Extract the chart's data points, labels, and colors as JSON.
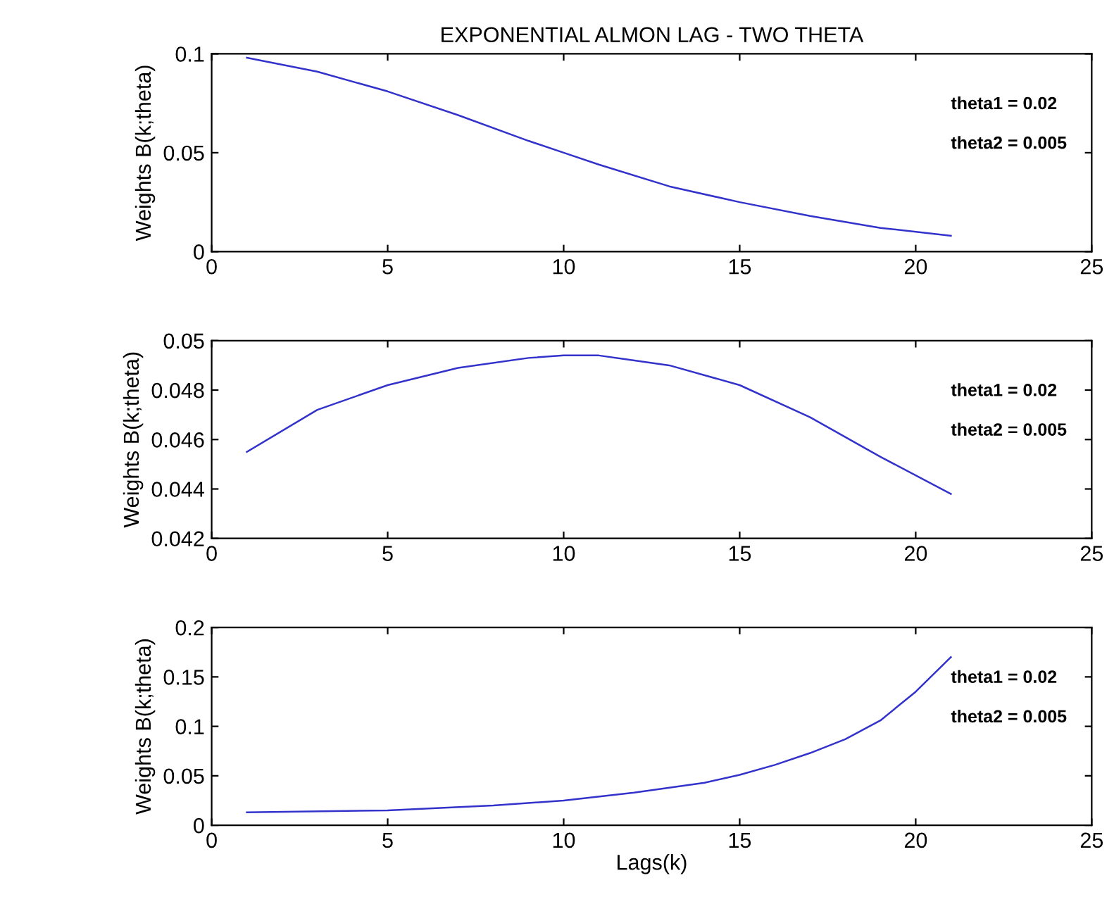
{
  "chart_data": [
    {
      "type": "line",
      "title": "EXPONENTIAL ALMON LAG - TWO THETA",
      "ylabel": "Weights B(k;theta)",
      "annotations": [
        "theta1 = 0.02",
        "theta2 = 0.005"
      ],
      "x": [
        1,
        3,
        5,
        7,
        9,
        10,
        11,
        13,
        15,
        17,
        19,
        21
      ],
      "series": [
        {
          "color": "#3333cc",
          "values": [
            0.098,
            0.091,
            0.081,
            0.069,
            0.056,
            0.05,
            0.044,
            0.033,
            0.025,
            0.018,
            0.012,
            0.008
          ]
        }
      ],
      "xlim": [
        0,
        25
      ],
      "xticks": [
        0,
        5,
        10,
        15,
        20,
        25
      ],
      "ylim": [
        0,
        0.1
      ],
      "yticks": [
        0,
        0.05,
        0.1
      ],
      "grid": false,
      "legend": false
    },
    {
      "type": "line",
      "ylabel": "Weights B(k;theta)",
      "annotations": [
        "theta1 = 0.02",
        "theta2 = 0.005"
      ],
      "x": [
        1,
        3,
        5,
        7,
        9,
        10,
        11,
        13,
        15,
        17,
        19,
        21
      ],
      "series": [
        {
          "color": "#3333cc",
          "values": [
            0.0455,
            0.0472,
            0.0482,
            0.0489,
            0.0493,
            0.0494,
            0.0494,
            0.049,
            0.0482,
            0.0469,
            0.0453,
            0.0438
          ]
        }
      ],
      "xlim": [
        0,
        25
      ],
      "xticks": [
        0,
        5,
        10,
        15,
        20,
        25
      ],
      "ylim": [
        0.042,
        0.05
      ],
      "yticks": [
        0.042,
        0.044,
        0.046,
        0.048,
        0.05
      ],
      "grid": false,
      "legend": false
    },
    {
      "type": "line",
      "xlabel": "Lags(k)",
      "ylabel": "Weights B(k;theta)",
      "annotations": [
        "theta1 = 0.02",
        "theta2 = 0.005"
      ],
      "x": [
        1,
        5,
        8,
        10,
        12,
        14,
        15,
        16,
        17,
        18,
        19,
        20,
        21
      ],
      "series": [
        {
          "color": "#3333cc",
          "values": [
            0.013,
            0.015,
            0.02,
            0.025,
            0.033,
            0.043,
            0.051,
            0.061,
            0.073,
            0.087,
            0.106,
            0.135,
            0.17
          ]
        }
      ],
      "xlim": [
        0,
        25
      ],
      "xticks": [
        0,
        5,
        10,
        15,
        20,
        25
      ],
      "ylim": [
        0,
        0.2
      ],
      "yticks": [
        0,
        0.05,
        0.1,
        0.15,
        0.2
      ],
      "grid": false,
      "legend": false
    }
  ]
}
